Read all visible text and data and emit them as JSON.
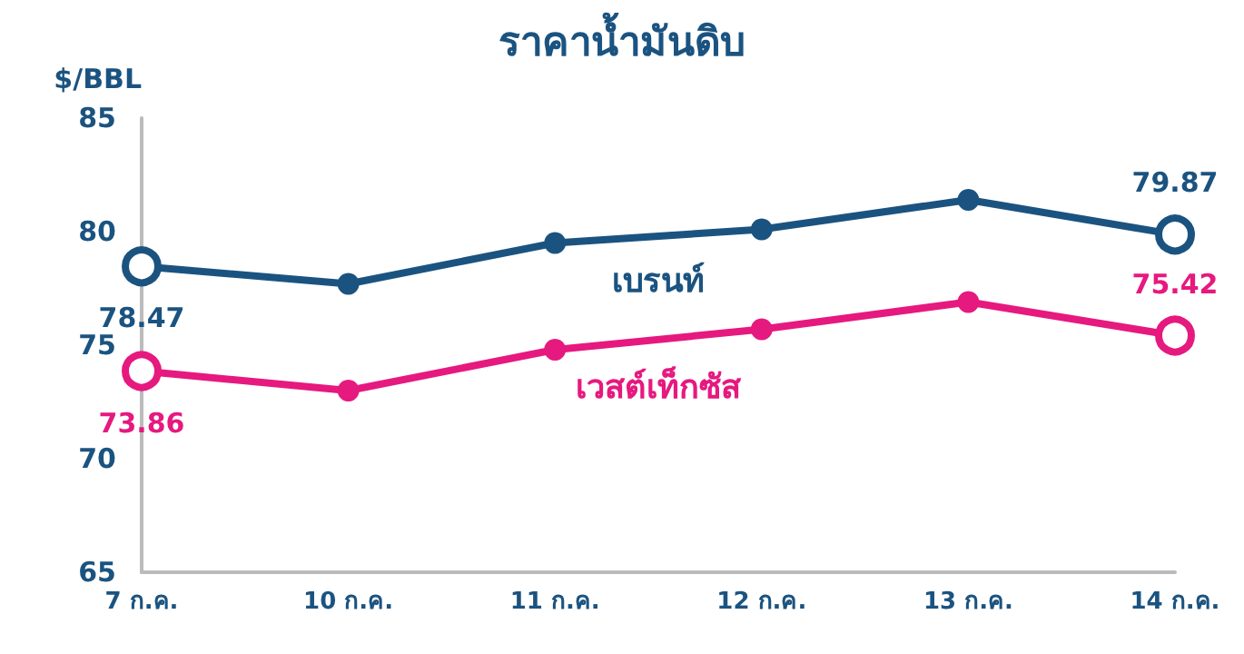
{
  "chart_data": {
    "type": "line",
    "title": "ราคาน้ำมันดิบ",
    "ylabel": "$/BBL",
    "categories": [
      "7 ก.ค.",
      "10 ก.ค.",
      "11 ก.ค.",
      "12 ก.ค.",
      "13 ก.ค.",
      "14 ก.ค."
    ],
    "series": [
      {
        "name": "เบรนท์",
        "color": "#1b5380",
        "values": [
          78.47,
          77.7,
          79.5,
          80.1,
          81.4,
          79.87
        ],
        "value_labels": [
          "78.47",
          null,
          null,
          null,
          null,
          "79.87"
        ]
      },
      {
        "name": "เวสต์เท็กซัส",
        "color": "#e6197f",
        "values": [
          73.86,
          73.0,
          74.8,
          75.7,
          76.9,
          75.42
        ],
        "value_labels": [
          "73.86",
          null,
          null,
          null,
          null,
          "75.42"
        ]
      }
    ],
    "ylim": [
      65,
      85
    ],
    "yticks": [
      65,
      70,
      75,
      80,
      85
    ],
    "grid": false,
    "legend": false,
    "marker": "circle",
    "line_style": "solid"
  }
}
